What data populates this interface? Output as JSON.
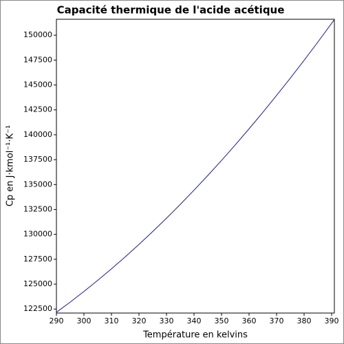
{
  "chart_data": {
    "type": "line",
    "title": "Capacité thermique de l'acide acétique",
    "x_label": "Température en kelvins",
    "y_label": "Cp en J·kmol⁻¹·K⁻¹",
    "x": [
      290,
      295,
      300,
      305,
      310,
      315,
      320,
      325,
      330,
      335,
      340,
      345,
      350,
      355,
      360,
      365,
      370,
      375,
      380,
      385,
      390,
      391
    ],
    "values": [
      122172,
      123196,
      124265,
      125379,
      126538,
      127742,
      128990,
      130284,
      131623,
      133006,
      134435,
      135908,
      137426,
      138989,
      140598,
      142251,
      143949,
      145692,
      147479,
      149312,
      151190,
      151571
    ],
    "color": "#1a1a8c",
    "xlim": [
      290,
      391
    ],
    "ylim": [
      122100,
      151600
    ],
    "xticks": [
      290,
      300,
      310,
      320,
      330,
      340,
      350,
      360,
      370,
      380,
      390
    ],
    "yticks": [
      122500,
      125000,
      127500,
      130000,
      132500,
      135000,
      137500,
      140000,
      142500,
      145000,
      147500,
      150000
    ],
    "grid": false
  }
}
